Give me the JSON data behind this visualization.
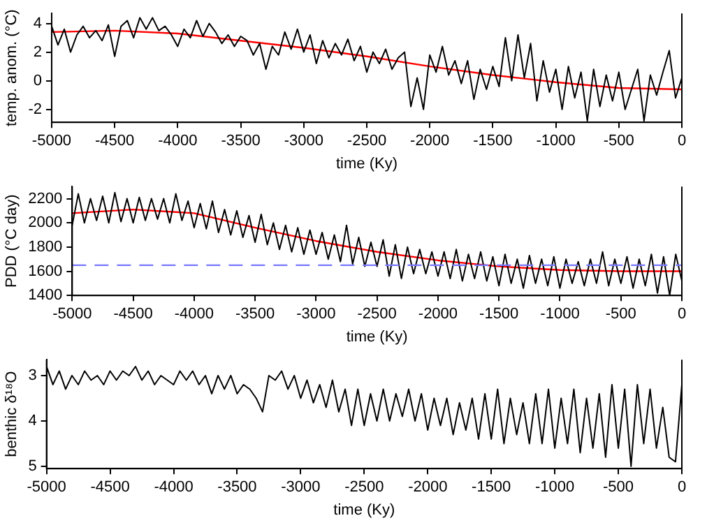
{
  "chart_data": [
    {
      "type": "line",
      "xlabel": "time (Ky)",
      "ylabel": "temp. anom. (°C)",
      "xlim": [
        -5000,
        0
      ],
      "xticks": [
        -5000,
        -4500,
        -4000,
        -3500,
        -3000,
        -2500,
        -2000,
        -1500,
        -1000,
        -500,
        0
      ],
      "ylim": [
        -2.9,
        4.7
      ],
      "yticks": [
        -2,
        0,
        2,
        4
      ],
      "grid": false,
      "legend": false,
      "marker": "none",
      "series": [
        {
          "color": "#000000",
          "x": [
            -5000,
            -4950,
            -4900,
            -4850,
            -4800,
            -4750,
            -4700,
            -4650,
            -4600,
            -4550,
            -4500,
            -4450,
            -4400,
            -4350,
            -4300,
            -4250,
            -4200,
            -4150,
            -4100,
            -4050,
            -4000,
            -3950,
            -3900,
            -3850,
            -3800,
            -3750,
            -3700,
            -3650,
            -3600,
            -3550,
            -3500,
            -3450,
            -3400,
            -3350,
            -3300,
            -3250,
            -3200,
            -3150,
            -3100,
            -3050,
            -3000,
            -2950,
            -2900,
            -2850,
            -2800,
            -2750,
            -2700,
            -2650,
            -2600,
            -2550,
            -2500,
            -2450,
            -2400,
            -2350,
            -2300,
            -2250,
            -2200,
            -2150,
            -2100,
            -2050,
            -2000,
            -1950,
            -1900,
            -1850,
            -1800,
            -1750,
            -1700,
            -1650,
            -1600,
            -1550,
            -1500,
            -1450,
            -1400,
            -1350,
            -1300,
            -1250,
            -1200,
            -1150,
            -1100,
            -1050,
            -1000,
            -950,
            -900,
            -850,
            -800,
            -750,
            -700,
            -650,
            -600,
            -550,
            -500,
            -450,
            -400,
            -350,
            -300,
            -250,
            -200,
            -150,
            -100,
            -50,
            0
          ],
          "values": [
            3.8,
            2.5,
            3.6,
            2.0,
            3.2,
            3.8,
            3.0,
            3.5,
            2.8,
            3.9,
            1.7,
            3.8,
            4.2,
            3.0,
            4.4,
            3.6,
            4.4,
            3.5,
            3.8,
            3.2,
            2.4,
            3.6,
            3.0,
            4.2,
            3.1,
            4.0,
            3.4,
            2.6,
            3.2,
            2.4,
            3.1,
            2.8,
            1.8,
            2.6,
            0.8,
            2.4,
            1.8,
            3.4,
            2.2,
            3.6,
            2.0,
            3.2,
            1.2,
            2.8,
            1.6,
            2.6,
            1.8,
            2.9,
            1.4,
            2.4,
            0.6,
            2.0,
            1.2,
            2.2,
            0.8,
            1.6,
            2.0,
            -1.8,
            0.2,
            -2.0,
            1.8,
            0.6,
            2.4,
            0.4,
            1.4,
            -0.2,
            1.4,
            -1.3,
            0.8,
            -0.6,
            1.0,
            -0.4,
            3.0,
            0.0,
            3.2,
            0.2,
            2.6,
            -1.4,
            1.4,
            -0.8,
            0.8,
            -2.0,
            1.0,
            -1.2,
            0.6,
            -2.8,
            0.8,
            -1.8,
            0.4,
            -1.4,
            0.6,
            -2.0,
            -0.6,
            0.8,
            -2.8,
            0.4,
            -1.0,
            0.6,
            2.1,
            -1.2,
            0.2
          ]
        },
        {
          "color": "#ff0000",
          "x": [
            -5000,
            -4500,
            -4000,
            -3500,
            -3000,
            -2500,
            -2000,
            -1500,
            -1000,
            -500,
            0
          ],
          "values": [
            3.4,
            3.5,
            3.3,
            2.8,
            2.3,
            1.7,
            1.0,
            0.4,
            -0.1,
            -0.5,
            -0.6
          ]
        }
      ]
    },
    {
      "type": "line",
      "xlabel": "time (Ky)",
      "ylabel": "PDD (°C day)",
      "xlim": [
        -5000,
        0
      ],
      "xticks": [
        -5000,
        -4500,
        -4000,
        -3500,
        -3000,
        -2500,
        -2000,
        -1500,
        -1000,
        -500,
        0
      ],
      "ylim": [
        1400,
        2300
      ],
      "yticks": [
        1400,
        1600,
        1800,
        2000,
        2200
      ],
      "grid": false,
      "legend": false,
      "marker": "none",
      "ref_lines": [
        {
          "axis": "y",
          "value": 1650,
          "color": "#7777ff",
          "line_style": "dashed"
        }
      ],
      "series": [
        {
          "color": "#000000",
          "x": [
            -5000,
            -4950,
            -4900,
            -4850,
            -4800,
            -4750,
            -4700,
            -4650,
            -4600,
            -4550,
            -4500,
            -4450,
            -4400,
            -4350,
            -4300,
            -4250,
            -4200,
            -4150,
            -4100,
            -4050,
            -4000,
            -3950,
            -3900,
            -3850,
            -3800,
            -3750,
            -3700,
            -3650,
            -3600,
            -3550,
            -3500,
            -3450,
            -3400,
            -3350,
            -3300,
            -3250,
            -3200,
            -3150,
            -3100,
            -3050,
            -3000,
            -2950,
            -2900,
            -2850,
            -2800,
            -2750,
            -2700,
            -2650,
            -2600,
            -2550,
            -2500,
            -2450,
            -2400,
            -2350,
            -2300,
            -2250,
            -2200,
            -2150,
            -2100,
            -2050,
            -2000,
            -1950,
            -1900,
            -1850,
            -1800,
            -1750,
            -1700,
            -1650,
            -1600,
            -1550,
            -1500,
            -1450,
            -1400,
            -1350,
            -1300,
            -1250,
            -1200,
            -1150,
            -1100,
            -1050,
            -1000,
            -950,
            -900,
            -850,
            -800,
            -750,
            -700,
            -650,
            -600,
            -550,
            -500,
            -450,
            -400,
            -350,
            -300,
            -250,
            -200,
            -150,
            -100,
            -50,
            0
          ],
          "values": [
            1980,
            2240,
            2000,
            2200,
            2020,
            2220,
            2000,
            2250,
            2010,
            2200,
            2000,
            2210,
            2020,
            2200,
            2030,
            2200,
            2000,
            2240,
            2020,
            2180,
            1960,
            2160,
            1950,
            2180,
            1920,
            2110,
            1900,
            2100,
            1880,
            2060,
            1840,
            2070,
            1820,
            2000,
            1780,
            1980,
            1760,
            1960,
            1740,
            1940,
            1740,
            1920,
            1700,
            1900,
            1680,
            1980,
            1660,
            1880,
            1640,
            1840,
            1640,
            1860,
            1560,
            1820,
            1540,
            1800,
            1580,
            1780,
            1580,
            1760,
            1560,
            1760,
            1540,
            1780,
            1520,
            1740,
            1540,
            1760,
            1520,
            1720,
            1480,
            1740,
            1500,
            1700,
            1460,
            1730,
            1500,
            1700,
            1480,
            1720,
            1460,
            1700,
            1500,
            1680,
            1480,
            1700,
            1500,
            1760,
            1480,
            1700,
            1500,
            1720,
            1460,
            1700,
            1480,
            1740,
            1420,
            1720,
            1400,
            1740,
            1520
          ]
        },
        {
          "color": "#ff0000",
          "x": [
            -5000,
            -4500,
            -4000,
            -3500,
            -3000,
            -2500,
            -2000,
            -1500,
            -1000,
            -500,
            0
          ],
          "values": [
            2080,
            2110,
            2080,
            1960,
            1850,
            1760,
            1690,
            1640,
            1610,
            1600,
            1600
          ]
        }
      ]
    },
    {
      "type": "line",
      "xlabel": "time (Ky)",
      "ylabel": "benthic δ¹⁸O",
      "xlim": [
        -5000,
        0
      ],
      "xticks": [
        -5000,
        -4500,
        -4000,
        -3500,
        -3000,
        -2500,
        -2000,
        -1500,
        -1000,
        -500,
        0
      ],
      "ylim": [
        5.05,
        2.65
      ],
      "yticks": [
        3,
        4,
        5
      ],
      "grid": false,
      "legend": false,
      "marker": "none",
      "series": [
        {
          "color": "#000000",
          "x": [
            -5000,
            -4950,
            -4900,
            -4850,
            -4800,
            -4750,
            -4700,
            -4650,
            -4600,
            -4550,
            -4500,
            -4450,
            -4400,
            -4350,
            -4300,
            -4250,
            -4200,
            -4150,
            -4100,
            -4050,
            -4000,
            -3950,
            -3900,
            -3850,
            -3800,
            -3750,
            -3700,
            -3650,
            -3600,
            -3550,
            -3500,
            -3450,
            -3400,
            -3350,
            -3300,
            -3250,
            -3200,
            -3150,
            -3100,
            -3050,
            -3000,
            -2950,
            -2900,
            -2850,
            -2800,
            -2750,
            -2700,
            -2650,
            -2600,
            -2550,
            -2500,
            -2450,
            -2400,
            -2350,
            -2300,
            -2250,
            -2200,
            -2150,
            -2100,
            -2050,
            -2000,
            -1950,
            -1900,
            -1850,
            -1800,
            -1750,
            -1700,
            -1650,
            -1600,
            -1550,
            -1500,
            -1450,
            -1400,
            -1350,
            -1300,
            -1250,
            -1200,
            -1150,
            -1100,
            -1050,
            -1000,
            -950,
            -900,
            -850,
            -800,
            -750,
            -700,
            -650,
            -600,
            -550,
            -500,
            -450,
            -400,
            -350,
            -300,
            -250,
            -200,
            -150,
            -100,
            -50,
            0
          ],
          "values": [
            2.8,
            3.2,
            2.9,
            3.3,
            3.0,
            3.2,
            2.9,
            3.1,
            3.0,
            3.2,
            2.9,
            3.1,
            2.9,
            3.0,
            2.8,
            3.1,
            2.9,
            3.2,
            3.0,
            3.1,
            3.2,
            2.9,
            3.1,
            2.9,
            3.2,
            3.0,
            3.4,
            3.0,
            3.3,
            3.0,
            3.4,
            3.2,
            3.3,
            3.5,
            3.8,
            3.0,
            3.1,
            2.9,
            3.3,
            3.0,
            3.5,
            3.1,
            3.6,
            3.2,
            3.7,
            3.1,
            3.8,
            3.3,
            4.1,
            3.3,
            4.1,
            3.4,
            4.0,
            3.3,
            4.0,
            3.4,
            3.9,
            3.3,
            4.0,
            3.4,
            4.2,
            3.5,
            4.1,
            3.5,
            4.3,
            3.6,
            4.2,
            3.5,
            4.4,
            3.4,
            4.4,
            3.3,
            4.5,
            3.5,
            4.3,
            3.6,
            4.5,
            3.4,
            4.5,
            3.3,
            4.6,
            3.5,
            4.5,
            3.3,
            4.7,
            3.5,
            4.6,
            3.4,
            4.8,
            3.2,
            4.6,
            3.3,
            5.0,
            3.2,
            4.5,
            3.3,
            4.6,
            3.7,
            4.8,
            4.9,
            3.2
          ]
        }
      ]
    }
  ]
}
